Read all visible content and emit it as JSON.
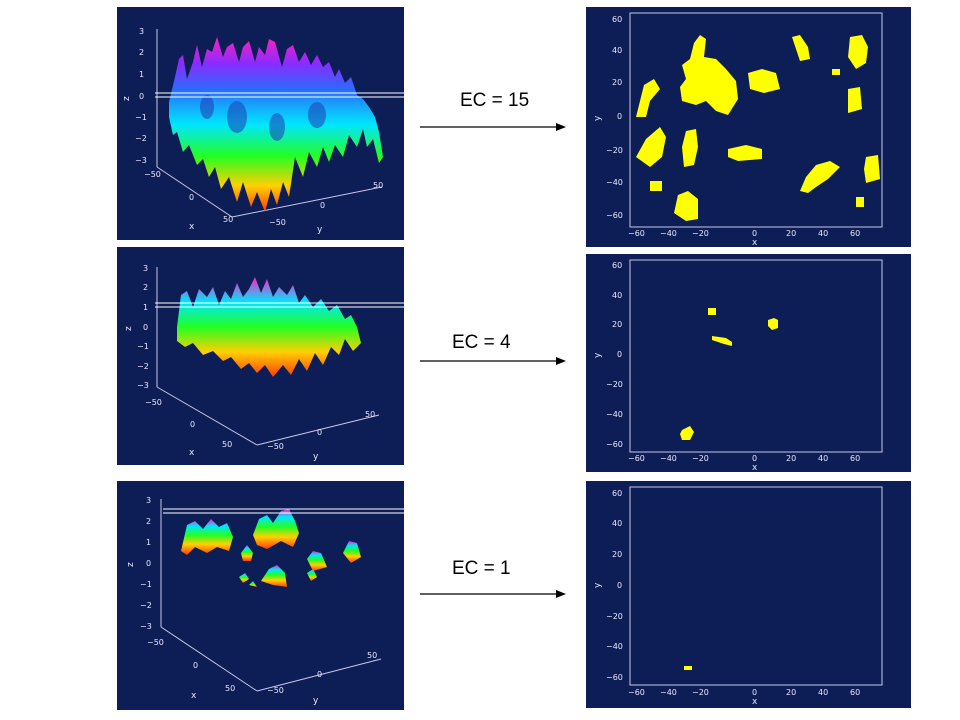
{
  "rows": [
    {
      "ec_label": "EC = 15",
      "surface": {
        "z_ticks": [
          "3",
          "2",
          "1",
          "0",
          "−1",
          "−2",
          "−3"
        ],
        "x_ticks": [
          "−50",
          "0",
          "50"
        ],
        "y_ticks": [
          "−50",
          "0",
          "50"
        ],
        "z_label": "z",
        "x_label": "x",
        "y_label": "y",
        "threshold_z": 0.0
      },
      "excursion": {
        "x_ticks": [
          "−60",
          "−40",
          "−20",
          "0",
          "20",
          "40",
          "60"
        ],
        "y_ticks": [
          "60",
          "40",
          "20",
          "0",
          "−20",
          "−40",
          "−60"
        ],
        "x_label": "x",
        "y_label": "y",
        "blob_count": 15
      }
    },
    {
      "ec_label": "EC = 4",
      "surface": {
        "z_ticks": [
          "3",
          "2",
          "1",
          "0",
          "−1",
          "−2",
          "−3"
        ],
        "x_ticks": [
          "−50",
          "0",
          "50"
        ],
        "y_ticks": [
          "−50",
          "0",
          "50"
        ],
        "z_label": "z",
        "x_label": "x",
        "y_label": "y",
        "threshold_z": 1.0
      },
      "excursion": {
        "x_ticks": [
          "−60",
          "−40",
          "−20",
          "0",
          "20",
          "40",
          "60"
        ],
        "y_ticks": [
          "60",
          "40",
          "20",
          "0",
          "−20",
          "−40",
          "−60"
        ],
        "x_label": "x",
        "y_label": "y",
        "blob_count": 4
      }
    },
    {
      "ec_label": "EC = 1",
      "surface": {
        "z_ticks": [
          "3",
          "2",
          "1",
          "0",
          "−1",
          "−2",
          "−3"
        ],
        "x_ticks": [
          "−50",
          "0",
          "50"
        ],
        "y_ticks": [
          "−50",
          "0",
          "50"
        ],
        "z_label": "z",
        "x_label": "x",
        "y_label": "y",
        "threshold_z": 2.5
      },
      "excursion": {
        "x_ticks": [
          "−60",
          "−40",
          "−20",
          "0",
          "20",
          "40",
          "60"
        ],
        "y_ticks": [
          "60",
          "40",
          "20",
          "0",
          "−20",
          "−40",
          "−60"
        ],
        "x_label": "x",
        "y_label": "y",
        "blob_count": 1
      }
    }
  ],
  "colors": {
    "panel_bg": "#0d1d55",
    "excursion_fill": "#ffff00",
    "axis": "#c8c8e8",
    "threshold_plane": "#ffffff"
  }
}
